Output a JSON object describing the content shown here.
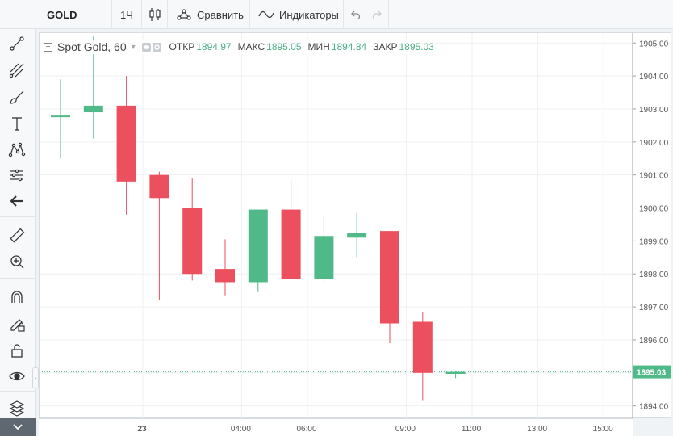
{
  "toolbar": {
    "symbol": "GOLD",
    "interval": "1Ч",
    "compare_label": "Сравнить",
    "indicators_label": "Индикаторы"
  },
  "legend": {
    "title": "Spot Gold, 60",
    "open_label": "ОТКР",
    "open_value": "1894.97",
    "high_label": "МАКС",
    "high_value": "1895.05",
    "low_label": "МИН",
    "low_value": "1894.84",
    "close_label": "ЗАКР",
    "close_value": "1895.03"
  },
  "colors": {
    "up": "#4fb987",
    "down": "#ec4f5d",
    "grid": "#eef1f3",
    "price_line": "#4fb987"
  },
  "left_tools": [
    "crosshair-icon",
    "trendline-icon",
    "fib-icon",
    "brush-icon",
    "text-icon",
    "pattern-icon",
    "prediction-icon",
    "back-arrow-icon",
    "ruler-icon",
    "zoom-in-icon",
    "magnet-icon",
    "lock-drawing-icon",
    "unlock-icon",
    "eye-icon",
    "layers-icon"
  ],
  "chart_data": {
    "type": "candlestick",
    "title": "Spot Gold, 60",
    "ylim": [
      1893.6,
      1905.3
    ],
    "y_ticks": [
      1894,
      1895,
      1896,
      1897,
      1898,
      1899,
      1900,
      1901,
      1902,
      1903,
      1904,
      1905
    ],
    "y_tick_labels": [
      "1894.00",
      "1895.00",
      "1896.00",
      "1897.00",
      "1898.00",
      "1899.00",
      "1900.00",
      "1901.00",
      "1902.00",
      "1903.00",
      "1904.00",
      "1905.00"
    ],
    "last_price": 1895.03,
    "last_price_label": "1895.03",
    "x_tick_labels": [
      "23",
      "04:00",
      "06:00",
      "09:00",
      "11:00",
      "13:00",
      "15:00"
    ],
    "x_tick_slots": [
      2.5,
      5.5,
      7.5,
      10.5,
      12.5,
      14.5,
      16.5
    ],
    "candles": [
      {
        "open": 1902.8,
        "high": 1903.9,
        "low": 1901.5,
        "close": 1902.8
      },
      {
        "open": 1902.9,
        "high": 1905.2,
        "low": 1902.1,
        "close": 1903.1
      },
      {
        "open": 1903.1,
        "high": 1904.0,
        "low": 1899.8,
        "close": 1900.8
      },
      {
        "open": 1901.0,
        "high": 1901.1,
        "low": 1897.2,
        "close": 1900.3
      },
      {
        "open": 1900.0,
        "high": 1900.9,
        "low": 1897.8,
        "close": 1898.0
      },
      {
        "open": 1898.15,
        "high": 1899.05,
        "low": 1897.35,
        "close": 1897.75
      },
      {
        "open": 1897.75,
        "high": 1899.95,
        "low": 1897.45,
        "close": 1899.95
      },
      {
        "open": 1899.95,
        "high": 1900.85,
        "low": 1897.85,
        "close": 1897.85
      },
      {
        "open": 1897.85,
        "high": 1899.75,
        "low": 1897.75,
        "close": 1899.15
      },
      {
        "open": 1899.1,
        "high": 1899.85,
        "low": 1898.5,
        "close": 1899.25
      },
      {
        "open": 1899.3,
        "high": 1899.3,
        "low": 1895.9,
        "close": 1896.5
      },
      {
        "open": 1896.55,
        "high": 1896.85,
        "low": 1894.15,
        "close": 1895.0
      },
      {
        "open": 1894.97,
        "high": 1895.05,
        "low": 1894.84,
        "close": 1895.03
      }
    ]
  }
}
